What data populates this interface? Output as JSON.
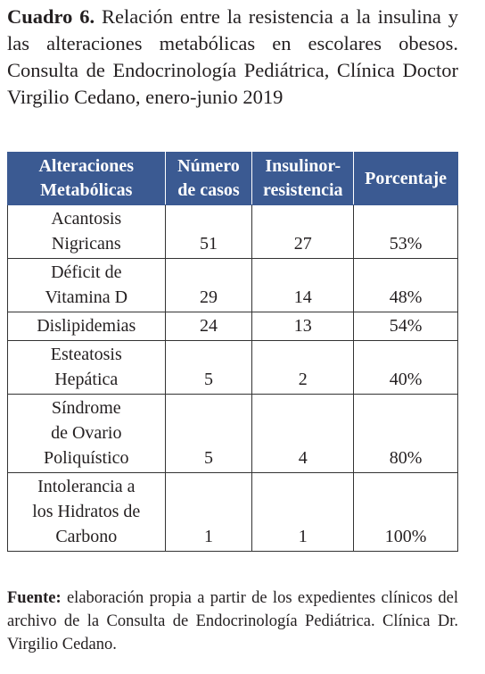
{
  "caption": {
    "label": "Cuadro 6.",
    "text": "Relación entre la resistencia a la insulina y las alteraciones metabólicas en escolares obesos. Consulta de Endocrinología Pediátrica, Clínica Doctor Virgilio Cedano, enero-junio 2019"
  },
  "table": {
    "header": [
      "Alteraciones\nMetabólicas",
      "Número\nde casos",
      "Insulinor-\nresistencia",
      "Porcentaje"
    ],
    "rows": [
      [
        "Acantosis\nNigricans",
        "51",
        "27",
        "53%"
      ],
      [
        "Déficit de\nVitamina D",
        "29",
        "14",
        "48%"
      ],
      [
        "Dislipidemias",
        "24",
        "13",
        "54%"
      ],
      [
        "Esteatosis\nHepática",
        "5",
        "2",
        "40%"
      ],
      [
        "Síndrome\nde Ovario\nPoliquístico",
        "5",
        "4",
        "80%"
      ],
      [
        "Intolerancia a\nlos Hidratos de\nCarbono",
        "1",
        "1",
        "100%"
      ]
    ]
  },
  "source": {
    "label": "Fuente:",
    "text": "elaboración propia a partir de los expedientes clínicos del archivo de la Consulta de Endocrinología Pediátrica. Clínica Dr. Virgilio Cedano."
  }
}
